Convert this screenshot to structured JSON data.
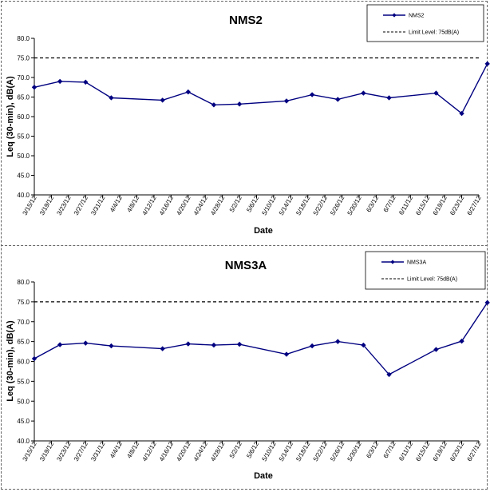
{
  "chart_data": [
    {
      "type": "line",
      "title": "NMS2",
      "xlabel": "Date",
      "ylabel": "Leq (30-min), dB(A)",
      "ylim": [
        40.0,
        80.0
      ],
      "yticks": [
        "40.0",
        "45.0",
        "50.0",
        "55.0",
        "60.0",
        "65.0",
        "70.0",
        "75.0",
        "80.0"
      ],
      "categories": [
        "3/15/12",
        "3/19/12",
        "3/23/12",
        "3/27/12",
        "3/31/12",
        "4/4/12",
        "4/8/12",
        "4/12/12",
        "4/16/12",
        "4/20/12",
        "4/24/12",
        "4/28/12",
        "5/2/12",
        "5/6/12",
        "5/10/12",
        "5/14/12",
        "5/18/12",
        "5/22/12",
        "5/26/12",
        "5/30/12",
        "6/3/12",
        "6/7/12",
        "6/11/12",
        "6/15/12",
        "6/19/12",
        "6/23/12",
        "6/27/12"
      ],
      "series": [
        {
          "name": "NMS2",
          "color": "#000080",
          "points": [
            {
              "x": "3/15/12",
              "y": 67.5
            },
            {
              "x": "3/21/12",
              "y": 69.0
            },
            {
              "x": "3/27/12",
              "y": 68.8
            },
            {
              "x": "4/2/12",
              "y": 64.8
            },
            {
              "x": "4/14/12",
              "y": 64.2
            },
            {
              "x": "4/20/12",
              "y": 66.3
            },
            {
              "x": "4/26/12",
              "y": 63.0
            },
            {
              "x": "5/2/12",
              "y": 63.2
            },
            {
              "x": "5/13/12",
              "y": 64.0
            },
            {
              "x": "5/19/12",
              "y": 65.6
            },
            {
              "x": "5/25/12",
              "y": 64.4
            },
            {
              "x": "5/31/12",
              "y": 66.0
            },
            {
              "x": "6/6/12",
              "y": 64.8
            },
            {
              "x": "6/17/12",
              "y": 66.0
            },
            {
              "x": "6/23/12",
              "y": 60.8
            },
            {
              "x": "6/29/12",
              "y": 73.5
            }
          ]
        }
      ],
      "reference_line": {
        "name": "Limit Level: 75dB(A)",
        "y": 75.0,
        "style": "dashed",
        "color": "#000000"
      },
      "legend": "top-right",
      "grid": false
    },
    {
      "type": "line",
      "title": "NMS3A",
      "xlabel": "Date",
      "ylabel": "Leq (30-min), dB(A)",
      "ylim": [
        40.0,
        80.0
      ],
      "yticks": [
        "40.0",
        "45.0",
        "50.0",
        "55.0",
        "60.0",
        "65.0",
        "70.0",
        "75.0",
        "80.0"
      ],
      "categories": [
        "3/15/12",
        "3/19/12",
        "3/23/12",
        "3/27/12",
        "3/31/12",
        "4/4/12",
        "4/8/12",
        "4/12/12",
        "4/16/12",
        "4/20/12",
        "4/24/12",
        "4/28/12",
        "5/2/12",
        "5/6/12",
        "5/10/12",
        "5/14/12",
        "5/18/12",
        "5/22/12",
        "5/26/12",
        "5/30/12",
        "6/3/12",
        "6/7/12",
        "6/11/12",
        "6/15/12",
        "6/19/12",
        "6/23/12",
        "6/27/12"
      ],
      "series": [
        {
          "name": "NMS3A",
          "color": "#000080",
          "points": [
            {
              "x": "3/15/12",
              "y": 60.7
            },
            {
              "x": "3/21/12",
              "y": 64.2
            },
            {
              "x": "3/27/12",
              "y": 64.6
            },
            {
              "x": "4/2/12",
              "y": 63.9
            },
            {
              "x": "4/14/12",
              "y": 63.2
            },
            {
              "x": "4/20/12",
              "y": 64.4
            },
            {
              "x": "4/26/12",
              "y": 64.1
            },
            {
              "x": "5/2/12",
              "y": 64.3
            },
            {
              "x": "5/13/12",
              "y": 61.8
            },
            {
              "x": "5/19/12",
              "y": 63.9
            },
            {
              "x": "5/25/12",
              "y": 65.0
            },
            {
              "x": "5/31/12",
              "y": 64.1
            },
            {
              "x": "6/6/12",
              "y": 56.7
            },
            {
              "x": "6/17/12",
              "y": 63.0
            },
            {
              "x": "6/23/12",
              "y": 65.1
            },
            {
              "x": "6/29/12",
              "y": 74.8
            }
          ]
        }
      ],
      "reference_line": {
        "name": "Limit Level: 75dB(A)",
        "y": 75.0,
        "style": "dashed",
        "color": "#000000"
      },
      "legend": "top-right",
      "grid": false
    }
  ]
}
